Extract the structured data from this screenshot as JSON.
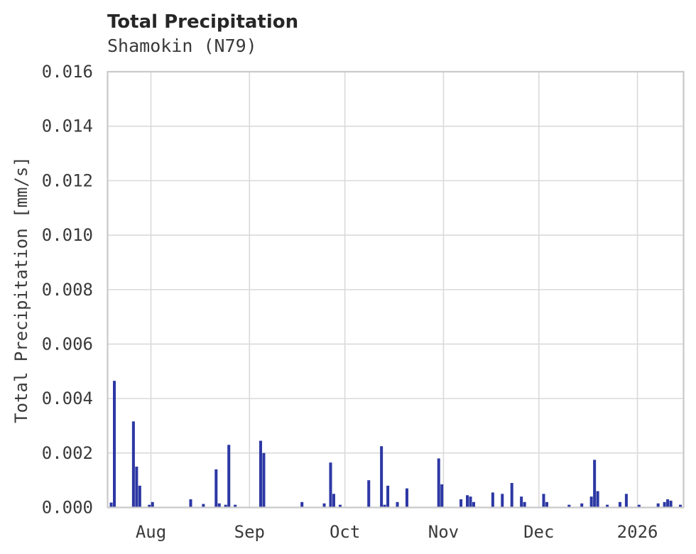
{
  "header": {
    "title": "Total Precipitation",
    "subtitle": "Shamokin (N79)"
  },
  "chart_data": {
    "type": "bar",
    "title": "Total Precipitation",
    "subtitle": "Shamokin (N79)",
    "xlabel": "",
    "ylabel": "Total Precipitation [mm/s]",
    "ylim": [
      0.0,
      0.016
    ],
    "yticks": [
      0.0,
      0.002,
      0.004,
      0.006,
      0.008,
      0.01,
      0.012,
      0.014,
      0.016
    ],
    "ytick_labels": [
      "0.000",
      "0.002",
      "0.004",
      "0.006",
      "0.008",
      "0.010",
      "0.012",
      "0.014",
      "0.016"
    ],
    "x_domain": [
      "2025-07-18T09:00:00Z",
      "2026-01-15T12:00:00Z"
    ],
    "xticks": [
      {
        "date": "2025-08-01",
        "label": "Aug"
      },
      {
        "date": "2025-09-01",
        "label": "Sep"
      },
      {
        "date": "2025-10-01",
        "label": "Oct"
      },
      {
        "date": "2025-11-01",
        "label": "Nov"
      },
      {
        "date": "2025-12-01",
        "label": "Dec"
      },
      {
        "date": "2026-01-01",
        "label": "2026"
      }
    ],
    "grid": true,
    "legend": "none",
    "series": [
      {
        "name": "Total Precipitation",
        "points": [
          [
            "2025-07-19",
            0.00018
          ],
          [
            "2025-07-20",
            0.00465
          ],
          [
            "2025-07-26",
            0.00316
          ],
          [
            "2025-07-27",
            0.0015
          ],
          [
            "2025-07-28",
            0.0008
          ],
          [
            "2025-07-31",
            0.0001
          ],
          [
            "2025-08-01",
            0.0002
          ],
          [
            "2025-08-13",
            0.0003
          ],
          [
            "2025-08-17",
            0.00013
          ],
          [
            "2025-08-21",
            0.0014
          ],
          [
            "2025-08-22",
            0.00015
          ],
          [
            "2025-08-24",
            0.0001
          ],
          [
            "2025-08-25",
            0.0023
          ],
          [
            "2025-08-27",
            0.0001
          ],
          [
            "2025-09-04",
            0.00245
          ],
          [
            "2025-09-05",
            0.002
          ],
          [
            "2025-09-17",
            0.0002
          ],
          [
            "2025-09-24",
            0.00015
          ],
          [
            "2025-09-26",
            0.00165
          ],
          [
            "2025-09-27",
            0.0005
          ],
          [
            "2025-09-29",
            0.0001
          ],
          [
            "2025-10-08",
            0.001
          ],
          [
            "2025-10-12",
            0.00225
          ],
          [
            "2025-10-13",
            0.0001
          ],
          [
            "2025-10-14",
            0.0008
          ],
          [
            "2025-10-17",
            0.0002
          ],
          [
            "2025-10-20",
            0.0007
          ],
          [
            "2025-10-30",
            0.0018
          ],
          [
            "2025-10-31",
            0.00085
          ],
          [
            "2025-11-06",
            0.0003
          ],
          [
            "2025-11-08",
            0.00045
          ],
          [
            "2025-11-09",
            0.0004
          ],
          [
            "2025-11-10",
            0.0002
          ],
          [
            "2025-11-16",
            0.00055
          ],
          [
            "2025-11-19",
            0.0005
          ],
          [
            "2025-11-22",
            0.0009
          ],
          [
            "2025-11-25",
            0.0004
          ],
          [
            "2025-11-26",
            0.0002
          ],
          [
            "2025-12-02",
            0.0005
          ],
          [
            "2025-12-03",
            0.0002
          ],
          [
            "2025-12-10",
            0.0001
          ],
          [
            "2025-12-14",
            0.00015
          ],
          [
            "2025-12-17",
            0.0004
          ],
          [
            "2025-12-18",
            0.00175
          ],
          [
            "2025-12-19",
            0.0006
          ],
          [
            "2025-12-22",
            0.0001
          ],
          [
            "2025-12-26",
            0.0002
          ],
          [
            "2025-12-28",
            0.0005
          ],
          [
            "2026-01-01",
            0.0001
          ],
          [
            "2026-01-07",
            0.00015
          ],
          [
            "2026-01-09",
            0.0002
          ],
          [
            "2026-01-10",
            0.0003
          ],
          [
            "2026-01-11",
            0.00025
          ],
          [
            "2026-01-14",
            0.0001
          ]
        ]
      }
    ],
    "colors": {
      "bar": "#2d38a4",
      "grid": "#dadada",
      "spine": "#c9c9c9",
      "text": "#3a3a3a",
      "title_text": "#262626",
      "background": "#ffffff"
    }
  }
}
